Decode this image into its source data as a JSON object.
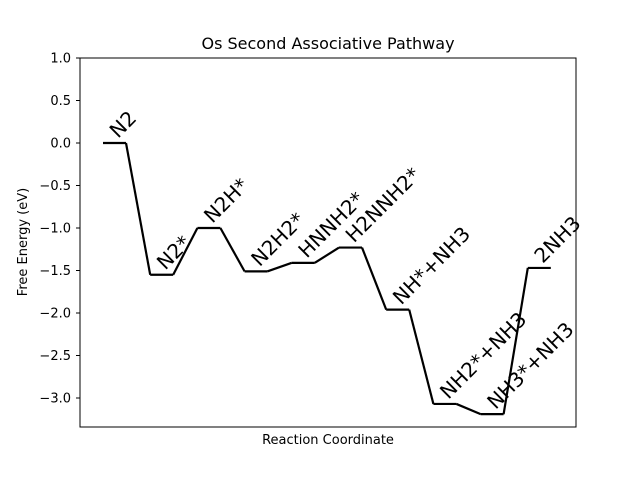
{
  "chart_data": {
    "type": "line",
    "title": "Os Second Associative Pathway",
    "xlabel": "Reaction Coordinate",
    "ylabel": "Free Energy (eV)",
    "ylim": [
      -3.35,
      1.0
    ],
    "yticks": [
      "1.0",
      "0.5",
      "0.0",
      "−0.5",
      "−1.0",
      "−1.5",
      "−2.0",
      "−2.5",
      "−3.0"
    ],
    "ytick_values": [
      1.0,
      0.5,
      0.0,
      -0.5,
      -1.0,
      -1.5,
      -2.0,
      -2.5,
      -3.0
    ],
    "grid": false,
    "line_color": "#000000",
    "steps": [
      {
        "label": "N2",
        "energy": 0.0
      },
      {
        "label": "N2*",
        "energy": -1.55
      },
      {
        "label": "N2H*",
        "energy": -1.0
      },
      {
        "label": "N2H2*",
        "energy": -1.51
      },
      {
        "label": "HNNH2*",
        "energy": -1.41
      },
      {
        "label": "H2NNH2*",
        "energy": -1.23
      },
      {
        "label": "NH*+NH3",
        "energy": -1.96
      },
      {
        "label": "NH2*+NH3",
        "energy": -3.07
      },
      {
        "label": "NH3*+NH3",
        "energy": -3.19
      },
      {
        "label": "2NH3",
        "energy": -1.47
      }
    ]
  }
}
